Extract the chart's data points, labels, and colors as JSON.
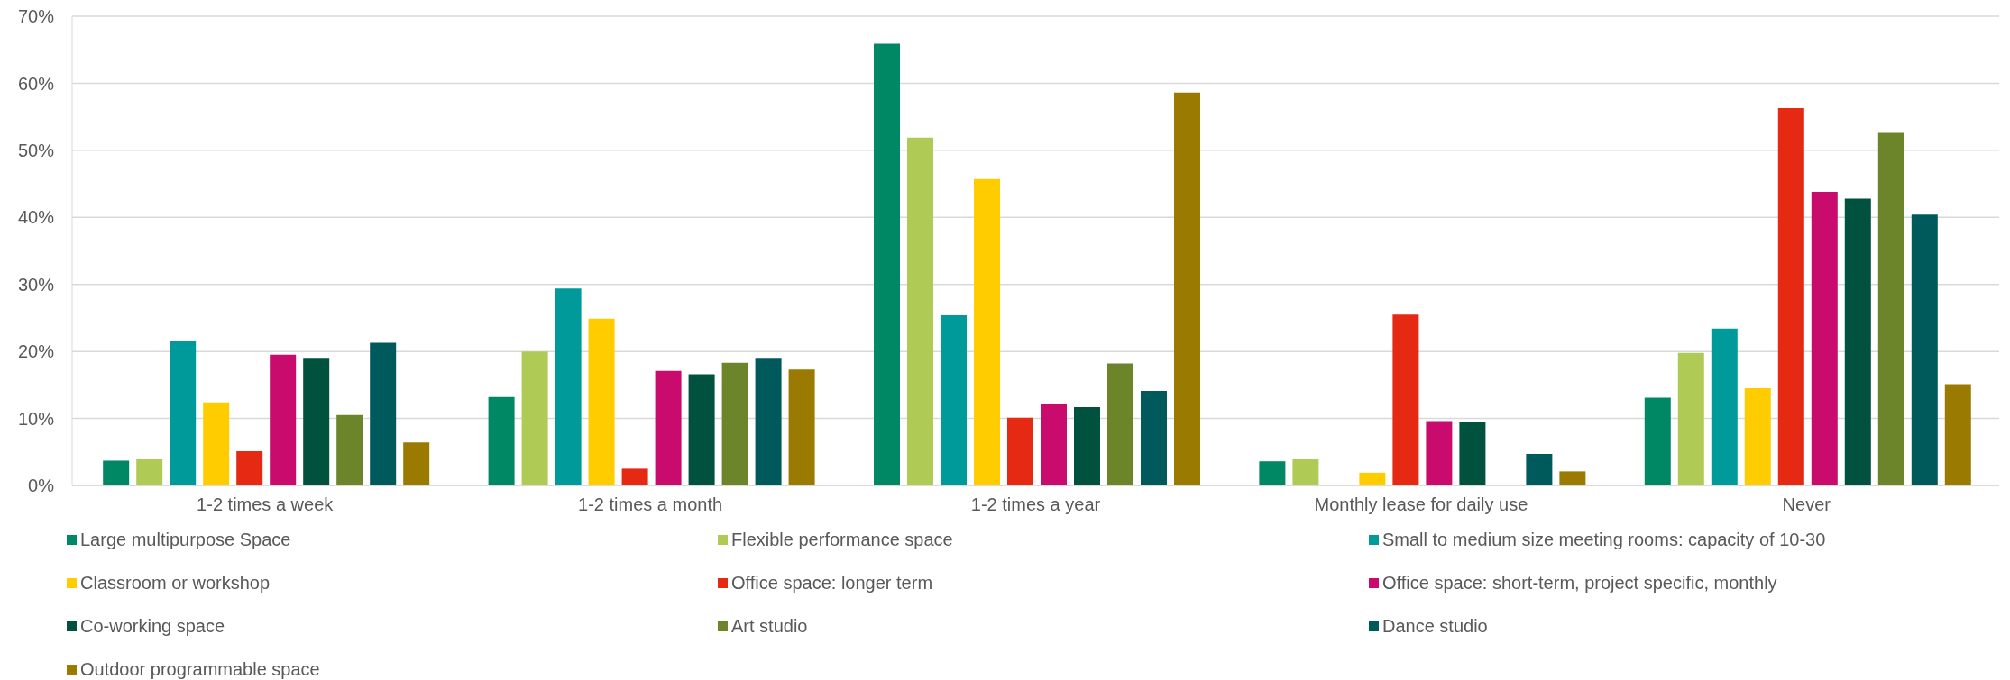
{
  "chart_data": {
    "type": "bar",
    "categories": [
      "1-2 times a week",
      "1-2 times a month",
      "1-2 times a year",
      "Monthly lease for daily use",
      "Never"
    ],
    "series": [
      {
        "name": "Large multipurpose Space",
        "color": "#008763",
        "values": [
          3.7,
          13.2,
          65.9,
          3.6,
          13.1
        ]
      },
      {
        "name": "Flexible performance space",
        "color": "#afcb56",
        "values": [
          3.9,
          20.0,
          51.9,
          3.9,
          19.8
        ]
      },
      {
        "name": "Small to medium size meeting rooms: capacity of 10-30",
        "color": "#009a9a",
        "values": [
          21.5,
          29.4,
          25.4,
          0,
          23.4
        ]
      },
      {
        "name": "Classroom or workshop",
        "color": "#ffcc00",
        "values": [
          12.4,
          24.9,
          45.7,
          1.9,
          14.5
        ]
      },
      {
        "name": "Office space: longer term",
        "color": "#e52913",
        "values": [
          5.1,
          2.5,
          10.1,
          25.5,
          56.3
        ]
      },
      {
        "name": "Office space: short-term, project specific, monthly",
        "color": "#c90b6e",
        "values": [
          19.5,
          17.1,
          12.1,
          9.6,
          43.8
        ]
      },
      {
        "name": "Co-working space",
        "color": "#00513e",
        "values": [
          18.9,
          16.6,
          11.7,
          9.5,
          42.8
        ]
      },
      {
        "name": "Art studio",
        "color": "#6c842a",
        "values": [
          10.5,
          18.3,
          18.2,
          0,
          52.6
        ]
      },
      {
        "name": "Dance studio",
        "color": "#005a5b",
        "values": [
          21.3,
          18.9,
          14.1,
          4.7,
          40.4
        ]
      },
      {
        "name": "Outdoor programmable space",
        "color": "#9a7a00",
        "values": [
          6.4,
          17.3,
          58.6,
          2.1,
          15.1
        ]
      }
    ],
    "ylim": [
      0,
      70
    ],
    "yticks": [
      {
        "value": 0,
        "label": "0%"
      },
      {
        "value": 10,
        "label": "10%"
      },
      {
        "value": 20,
        "label": "20%"
      },
      {
        "value": 30,
        "label": "30%"
      },
      {
        "value": 40,
        "label": "40%"
      },
      {
        "value": 50,
        "label": "50%"
      },
      {
        "value": 60,
        "label": "60%"
      },
      {
        "value": 70,
        "label": "70%"
      }
    ],
    "grid": "y",
    "legend": "bottom"
  }
}
